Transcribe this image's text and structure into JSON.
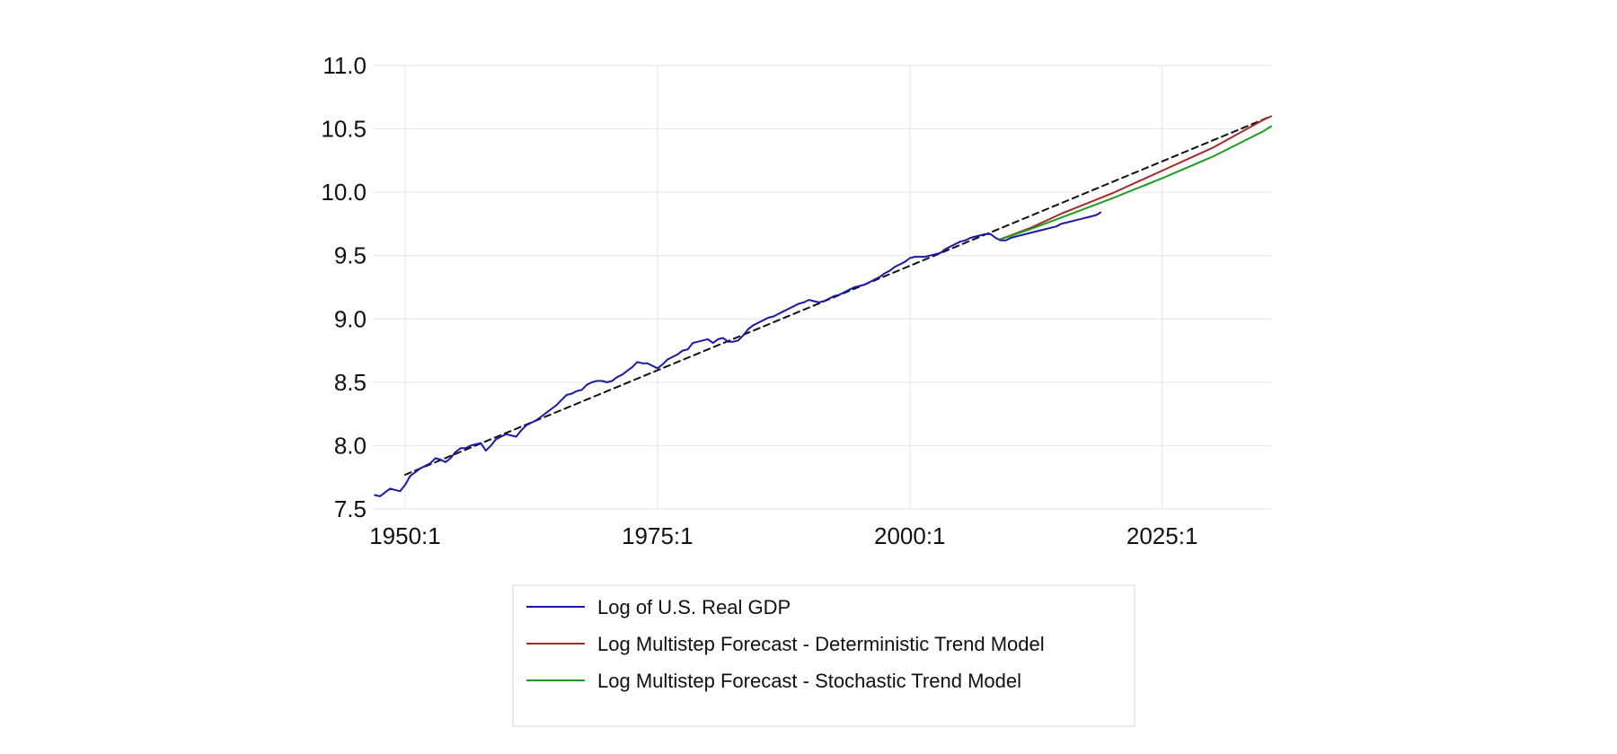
{
  "chart_data": {
    "type": "line",
    "title": "",
    "xlabel": "",
    "ylabel": "",
    "x_unit": "year",
    "xlim": [
      1946.8,
      2035.8
    ],
    "ylim": [
      7.5,
      11.0
    ],
    "grid": true,
    "legend_position": "bottom-center",
    "x_ticks": [
      {
        "value": 1950,
        "label": "1950:1"
      },
      {
        "value": 1975,
        "label": "1975:1"
      },
      {
        "value": 2000,
        "label": "2000:1"
      },
      {
        "value": 2025,
        "label": "2025:1"
      }
    ],
    "y_ticks": [
      {
        "value": 7.5,
        "label": "7.5"
      },
      {
        "value": 8.0,
        "label": "8.0"
      },
      {
        "value": 8.5,
        "label": "8.5"
      },
      {
        "value": 9.0,
        "label": "9.0"
      },
      {
        "value": 9.5,
        "label": "9.5"
      },
      {
        "value": 10.0,
        "label": "10.0"
      },
      {
        "value": 10.5,
        "label": "10.5"
      },
      {
        "value": 11.0,
        "label": "11.0"
      }
    ],
    "series": [
      {
        "name": "Log of U.S. Real GDP",
        "color": "#1a1aa6",
        "style": "solid",
        "in_legend": true,
        "points": [
          [
            1947.0,
            7.61
          ],
          [
            1947.5,
            7.6
          ],
          [
            1948.0,
            7.63
          ],
          [
            1948.5,
            7.66
          ],
          [
            1949.0,
            7.65
          ],
          [
            1949.5,
            7.64
          ],
          [
            1950.0,
            7.69
          ],
          [
            1950.5,
            7.76
          ],
          [
            1951.0,
            7.79
          ],
          [
            1951.5,
            7.82
          ],
          [
            1952.0,
            7.84
          ],
          [
            1952.5,
            7.86
          ],
          [
            1953.0,
            7.9
          ],
          [
            1953.5,
            7.89
          ],
          [
            1954.0,
            7.87
          ],
          [
            1954.5,
            7.9
          ],
          [
            1955.0,
            7.95
          ],
          [
            1955.5,
            7.98
          ],
          [
            1956.0,
            7.98
          ],
          [
            1956.5,
            8.0
          ],
          [
            1957.0,
            8.01
          ],
          [
            1957.5,
            8.02
          ],
          [
            1958.0,
            7.96
          ],
          [
            1958.5,
            8.0
          ],
          [
            1959.0,
            8.05
          ],
          [
            1959.5,
            8.07
          ],
          [
            1960.0,
            8.09
          ],
          [
            1960.5,
            8.08
          ],
          [
            1961.0,
            8.07
          ],
          [
            1961.5,
            8.12
          ],
          [
            1962.0,
            8.16
          ],
          [
            1962.5,
            8.18
          ],
          [
            1963.0,
            8.2
          ],
          [
            1963.5,
            8.23
          ],
          [
            1964.0,
            8.26
          ],
          [
            1964.5,
            8.29
          ],
          [
            1965.0,
            8.32
          ],
          [
            1965.5,
            8.36
          ],
          [
            1966.0,
            8.4
          ],
          [
            1966.5,
            8.41
          ],
          [
            1967.0,
            8.43
          ],
          [
            1967.5,
            8.44
          ],
          [
            1968.0,
            8.48
          ],
          [
            1968.5,
            8.5
          ],
          [
            1969.0,
            8.51
          ],
          [
            1969.5,
            8.51
          ],
          [
            1970.0,
            8.5
          ],
          [
            1970.5,
            8.51
          ],
          [
            1971.0,
            8.54
          ],
          [
            1971.5,
            8.56
          ],
          [
            1972.0,
            8.59
          ],
          [
            1972.5,
            8.62
          ],
          [
            1973.0,
            8.66
          ],
          [
            1973.5,
            8.65
          ],
          [
            1974.0,
            8.65
          ],
          [
            1974.5,
            8.63
          ],
          [
            1975.0,
            8.61
          ],
          [
            1975.5,
            8.64
          ],
          [
            1976.0,
            8.68
          ],
          [
            1976.5,
            8.7
          ],
          [
            1977.0,
            8.72
          ],
          [
            1977.5,
            8.75
          ],
          [
            1978.0,
            8.76
          ],
          [
            1978.5,
            8.81
          ],
          [
            1979.0,
            8.82
          ],
          [
            1979.5,
            8.83
          ],
          [
            1980.0,
            8.84
          ],
          [
            1980.5,
            8.81
          ],
          [
            1981.0,
            8.84
          ],
          [
            1981.5,
            8.85
          ],
          [
            1982.0,
            8.82
          ],
          [
            1982.5,
            8.82
          ],
          [
            1983.0,
            8.83
          ],
          [
            1983.5,
            8.87
          ],
          [
            1984.0,
            8.92
          ],
          [
            1984.5,
            8.95
          ],
          [
            1985.0,
            8.97
          ],
          [
            1985.5,
            8.99
          ],
          [
            1986.0,
            9.01
          ],
          [
            1986.5,
            9.02
          ],
          [
            1987.0,
            9.04
          ],
          [
            1987.5,
            9.06
          ],
          [
            1988.0,
            9.08
          ],
          [
            1988.5,
            9.1
          ],
          [
            1989.0,
            9.12
          ],
          [
            1989.5,
            9.13
          ],
          [
            1990.0,
            9.15
          ],
          [
            1990.5,
            9.14
          ],
          [
            1991.0,
            9.13
          ],
          [
            1991.5,
            9.14
          ],
          [
            1992.0,
            9.16
          ],
          [
            1992.5,
            9.18
          ],
          [
            1993.0,
            9.19
          ],
          [
            1993.5,
            9.21
          ],
          [
            1994.0,
            9.23
          ],
          [
            1994.5,
            9.25
          ],
          [
            1995.0,
            9.26
          ],
          [
            1995.5,
            9.27
          ],
          [
            1996.0,
            9.29
          ],
          [
            1996.5,
            9.31
          ],
          [
            1997.0,
            9.33
          ],
          [
            1997.5,
            9.36
          ],
          [
            1998.0,
            9.38
          ],
          [
            1998.5,
            9.41
          ],
          [
            1999.0,
            9.43
          ],
          [
            1999.5,
            9.45
          ],
          [
            2000.0,
            9.48
          ],
          [
            2000.5,
            9.49
          ],
          [
            2001.0,
            9.49
          ],
          [
            2001.5,
            9.49
          ],
          [
            2002.0,
            9.5
          ],
          [
            2002.5,
            9.51
          ],
          [
            2003.0,
            9.52
          ],
          [
            2003.5,
            9.55
          ],
          [
            2004.0,
            9.57
          ],
          [
            2004.5,
            9.59
          ],
          [
            2005.0,
            9.61
          ],
          [
            2005.5,
            9.62
          ],
          [
            2006.0,
            9.64
          ],
          [
            2006.5,
            9.65
          ],
          [
            2007.0,
            9.66
          ],
          [
            2007.5,
            9.67
          ],
          [
            2008.0,
            9.67
          ],
          [
            2008.5,
            9.64
          ],
          [
            2009.0,
            9.62
          ],
          [
            2009.5,
            9.62
          ],
          [
            2010.0,
            9.64
          ],
          [
            2010.5,
            9.65
          ],
          [
            2011.0,
            9.66
          ],
          [
            2011.5,
            9.67
          ],
          [
            2012.0,
            9.68
          ],
          [
            2012.5,
            9.69
          ],
          [
            2013.0,
            9.7
          ],
          [
            2013.5,
            9.71
          ],
          [
            2014.0,
            9.72
          ],
          [
            2014.5,
            9.73
          ],
          [
            2015.0,
            9.75
          ],
          [
            2015.5,
            9.76
          ],
          [
            2016.0,
            9.77
          ],
          [
            2016.5,
            9.78
          ],
          [
            2017.0,
            9.79
          ],
          [
            2017.5,
            9.8
          ],
          [
            2018.0,
            9.81
          ],
          [
            2018.5,
            9.82
          ],
          [
            2018.9,
            9.84
          ]
        ]
      },
      {
        "name": "Log Multistep Forecast - Deterministic Trend Model",
        "color": "#a52a2a",
        "style": "solid",
        "in_legend": true,
        "points": [
          [
            2009.0,
            9.63
          ],
          [
            2012.0,
            9.72
          ],
          [
            2015.0,
            9.83
          ],
          [
            2020.0,
            9.99
          ],
          [
            2025.0,
            10.17
          ],
          [
            2030.0,
            10.35
          ],
          [
            2035.0,
            10.57
          ],
          [
            2035.8,
            10.6
          ]
        ]
      },
      {
        "name": "Log Multistep Forecast - Stochastic Trend Model",
        "color": "#1e9e1e",
        "style": "solid",
        "in_legend": true,
        "points": [
          [
            2009.0,
            9.63
          ],
          [
            2012.0,
            9.71
          ],
          [
            2015.0,
            9.8
          ],
          [
            2020.0,
            9.95
          ],
          [
            2025.0,
            10.11
          ],
          [
            2030.0,
            10.28
          ],
          [
            2035.0,
            10.48
          ],
          [
            2035.8,
            10.52
          ]
        ]
      },
      {
        "name": "",
        "color": "#111111",
        "style": "dashed",
        "in_legend": false,
        "points": [
          [
            1950.0,
            7.77
          ],
          [
            2035.8,
            10.6
          ]
        ]
      }
    ]
  }
}
